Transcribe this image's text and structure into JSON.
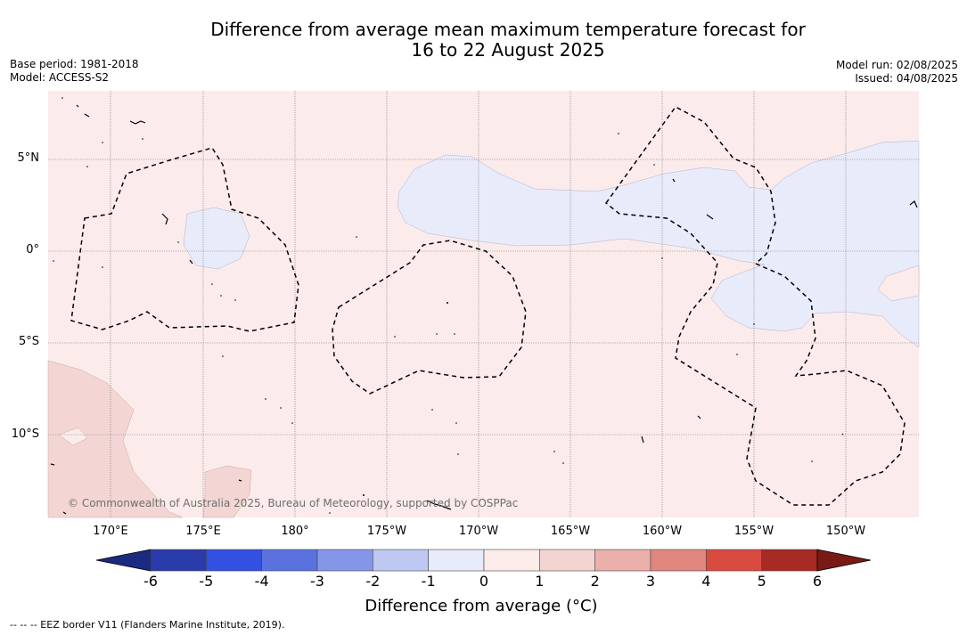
{
  "title_line1": "Difference from average mean maximum temperature forecast for",
  "title_line2": "16 to 22 August 2025",
  "base_period": "Base period: 1981-2018",
  "model": "Model: ACCESS-S2",
  "model_run": "Model run: 02/08/2025",
  "issued": "Issued: 04/08/2025",
  "lat_labels": [
    "5°N",
    "0°",
    "5°S",
    "10°S"
  ],
  "lon_labels": [
    "170°E",
    "175°E",
    "180°",
    "175°W",
    "170°W",
    "165°W",
    "160°W",
    "155°W",
    "150°W"
  ],
  "colorbar": {
    "title": "Difference from average (°C)",
    "ticks": [
      "-6",
      "-5",
      "-4",
      "-3",
      "-2",
      "-1",
      "0",
      "1",
      "2",
      "3",
      "4",
      "5",
      "6"
    ],
    "colors": [
      "#2a3bab",
      "#3350e0",
      "#5a72e0",
      "#8596e8",
      "#bfc7f3",
      "#e8ebfa",
      "#fbecea",
      "#f3d4d0",
      "#ebb0aa",
      "#e08780",
      "#d94a40",
      "#a82a25"
    ],
    "under_color": "#1b2a80",
    "over_color": "#7a1a16"
  },
  "copyright": "© Commonwealth of Australia 2025, Bureau of Meteorology, supported by COSPPac",
  "footnote": "--  --  -- EEZ border V11 (Flanders Marine Institute, 2019)."
}
